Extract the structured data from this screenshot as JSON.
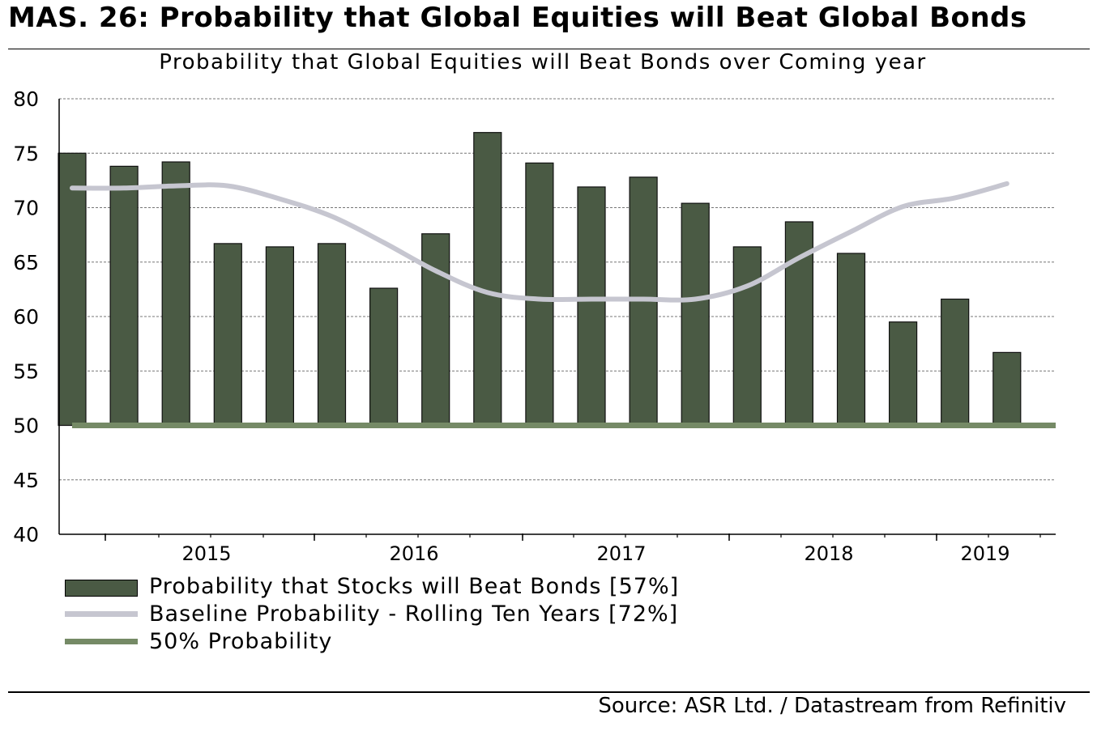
{
  "header": {
    "title": "MAS. 26: Probability that Global Equities will Beat Global Bonds",
    "source": "Source: ASR Ltd. / Datastream from Refinitiv"
  },
  "colors": {
    "bar": "#4a5a44",
    "baseline": "#c6c6d0",
    "fifty": "#758a66"
  },
  "legend": [
    {
      "label": "Probability that Stocks will Beat Bonds  [57%]",
      "swatch": "bar"
    },
    {
      "label": "Baseline Probability - Rolling Ten Years [72%]",
      "swatch": "line-gray"
    },
    {
      "label": "50% Probability",
      "swatch": "line-green"
    }
  ],
  "chart_data": {
    "type": "bar",
    "title": "Probability that Global Equities will Beat Bonds over Coming year",
    "ylim": [
      40,
      80
    ],
    "yticks": [
      40,
      45,
      50,
      55,
      60,
      65,
      70,
      75,
      80
    ],
    "grid": true,
    "x_tick_labels": [
      "2015",
      "2016",
      "2017",
      "2018",
      "2019"
    ],
    "series": [
      {
        "name": "Probability that Stocks will Beat Bonds",
        "kind": "bar",
        "values": [
          75,
          73.8,
          74.2,
          66.7,
          66.4,
          66.7,
          62.6,
          67.6,
          76.9,
          74.1,
          71.9,
          72.8,
          70.4,
          66.4,
          68.7,
          65.8,
          59.5,
          61.6,
          56.7
        ]
      },
      {
        "name": "Baseline Probability - Rolling Ten Years",
        "kind": "line",
        "values": [
          71.8,
          71.8,
          72.0,
          72.0,
          70.8,
          69.2,
          66.8,
          64.2,
          62.2,
          61.6,
          61.6,
          61.6,
          61.6,
          62.8,
          65.4,
          67.8,
          70.1,
          70.9,
          72.2
        ]
      },
      {
        "name": "50% Probability",
        "kind": "hline",
        "value": 50
      }
    ]
  }
}
